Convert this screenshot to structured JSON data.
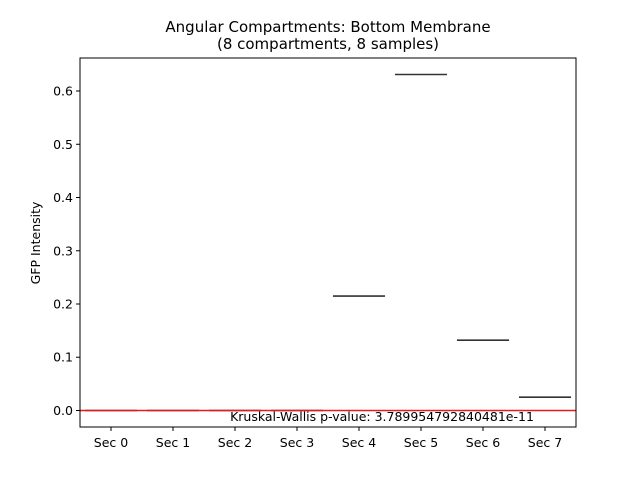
{
  "chart_data": {
    "type": "box",
    "title": "Angular Compartments: Bottom Membrane",
    "subtitle": "(8 compartments, 8 samples)",
    "xlabel": "",
    "ylabel": "GFP Intensity",
    "categories": [
      "Sec 0",
      "Sec 1",
      "Sec 2",
      "Sec 3",
      "Sec 4",
      "Sec 5",
      "Sec 6",
      "Sec 7"
    ],
    "values": [
      0.0,
      0.0,
      0.0,
      0.0,
      0.215,
      0.631,
      0.132,
      0.025
    ],
    "ylim": [
      -0.031,
      0.662
    ],
    "yticks": [
      0.0,
      0.1,
      0.2,
      0.3,
      0.4,
      0.5,
      0.6
    ],
    "ytick_labels": [
      "0.0",
      "0.1",
      "0.2",
      "0.3",
      "0.4",
      "0.5",
      "0.6"
    ],
    "reference_line": {
      "y": 0.0,
      "color": "#e41a1c"
    },
    "annotation": "Kruskal-Wallis p-value: 3.789954792840481e-11",
    "grid": false,
    "median_color": "#333333"
  }
}
